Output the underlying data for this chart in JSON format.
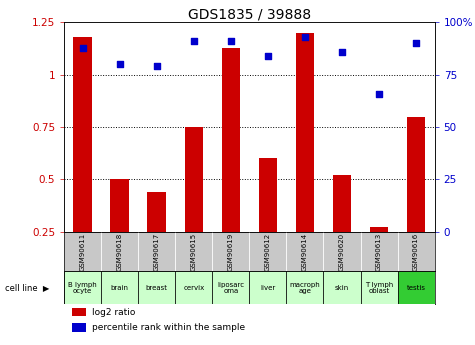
{
  "title": "GDS1835 / 39888",
  "samples": [
    "GSM90611",
    "GSM90618",
    "GSM90617",
    "GSM90615",
    "GSM90619",
    "GSM90612",
    "GSM90614",
    "GSM90620",
    "GSM90613",
    "GSM90616"
  ],
  "cell_lines": [
    "B lymph\nocyte",
    "brain",
    "breast",
    "cervix",
    "liposarc\noma",
    "liver",
    "macroph\nage",
    "skin",
    "T lymph\noblast",
    "testis"
  ],
  "cell_line_colors": [
    "#ccffcc",
    "#ccffcc",
    "#ccffcc",
    "#ccffcc",
    "#ccffcc",
    "#ccffcc",
    "#ccffcc",
    "#ccffcc",
    "#ccffcc",
    "#33cc33"
  ],
  "log2_ratio": [
    1.18,
    0.5,
    0.44,
    0.75,
    1.13,
    0.6,
    1.2,
    0.52,
    0.27,
    0.8
  ],
  "percentile_rank": [
    88,
    80,
    79,
    91,
    91,
    84,
    93,
    86,
    66,
    90
  ],
  "bar_color": "#cc0000",
  "dot_color": "#0000cc",
  "ylim_left": [
    0.25,
    1.25
  ],
  "ylim_right": [
    0,
    100
  ],
  "yticks_left": [
    0.25,
    0.5,
    0.75,
    1.0,
    1.25
  ],
  "ytick_labels_left": [
    "0.25",
    "0.5",
    "0.75",
    "1",
    "1.25"
  ],
  "yticks_right": [
    0,
    25,
    50,
    75,
    100
  ],
  "ytick_labels_right": [
    "0",
    "25",
    "50",
    "75",
    "100%"
  ],
  "grid_values": [
    0.5,
    0.75,
    1.0
  ],
  "bg_color": "#ffffff",
  "plot_bg": "#ffffff",
  "sample_bg": "#c8c8c8",
  "bar_width": 0.5
}
